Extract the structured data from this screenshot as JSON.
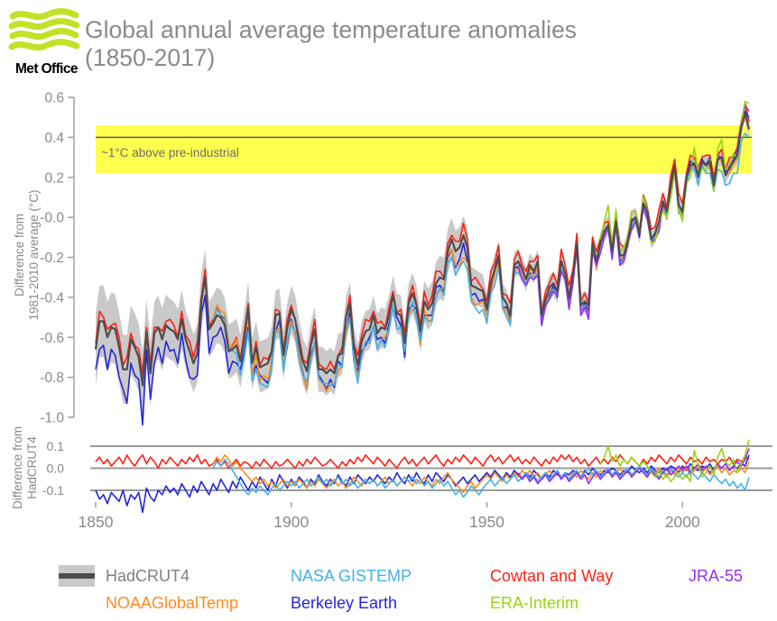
{
  "header": {
    "brand": "Met Office",
    "logo_icon": "met-office-waves-icon",
    "title_line1": "Global annual average temperature anomalies",
    "title_line2": "(1850-2017)"
  },
  "colors": {
    "background": "#ffffff",
    "title_text": "#8a8a8a",
    "axis_text": "#8a8a8a",
    "axis_line": "#9b9b9b",
    "grid_line": "#9b9b9b",
    "highlight_band": "#ffff4e",
    "highlight_line": "#5a5a5a",
    "uncertainty_band": "#c9c9c9",
    "logo_green": "#c3e126",
    "logo_text": "#000000"
  },
  "annotation": {
    "label": "~1°C above pre-industrial",
    "band_from_c": 0.22,
    "band_to_c": 0.46,
    "line_at_c": 0.4
  },
  "main_axis": {
    "ylabel_line1": "Difference from",
    "ylabel_line2": "1981-2010 average (°C)",
    "yticks": [
      0.6,
      0.4,
      0.2,
      0.0,
      -0.2,
      -0.4,
      -0.6,
      -0.8,
      -1.0
    ],
    "ytick_labels": [
      "0.6",
      "0.4",
      "0.2",
      "-0.0",
      "-0.2",
      "-0.4",
      "-0.6",
      "-0.8",
      "-1.0"
    ]
  },
  "diff_axis": {
    "ylabel_line1": "Difference from",
    "ylabel_line2": "HadCRUT4",
    "yticks": [
      0.1,
      0.0,
      -0.1
    ],
    "ytick_labels": [
      "0.1",
      "0.0",
      "-0.1"
    ]
  },
  "xaxis": {
    "ticks": [
      1850,
      1900,
      1950,
      2000
    ],
    "tick_labels": [
      "1850",
      "1900",
      "1950",
      "2000"
    ],
    "range": [
      1850,
      2017
    ]
  },
  "legend": {
    "rows": [
      [
        {
          "label": "HadCRUT4",
          "color": "#808080",
          "swatch": "band"
        },
        {
          "label": "NASA GISTEMP",
          "color": "#45b0e6"
        },
        {
          "label": "Cowtan and Way",
          "color": "#ff2014"
        },
        {
          "label": "JRA-55",
          "color": "#9430ef"
        }
      ],
      [
        {
          "label": "NOAAGlobalTemp",
          "color": "#ff8c1c"
        },
        {
          "label": "Berkeley Earth",
          "color": "#2525dc"
        },
        {
          "label": "ERA-Interim",
          "color": "#9bd313"
        }
      ]
    ]
  },
  "chart_data": {
    "type": "line",
    "title": "Global annual average temperature anomalies (1850-2017)",
    "xlabel": "",
    "ylabel": "Difference from 1981-2010 average (°C)",
    "diff_panel_ylabel": "Difference from HadCRUT4",
    "x_range": [
      1850,
      2017
    ],
    "main_ylim": [
      -1.05,
      0.65
    ],
    "diff_ylim": [
      -0.2,
      0.15
    ],
    "xticks": [
      1850,
      1900,
      1950,
      2000
    ],
    "main_yticks": [
      0.6,
      0.4,
      0.2,
      0.0,
      -0.2,
      -0.4,
      -0.6,
      -0.8,
      -1.0
    ],
    "diff_yticks": [
      0.1,
      0.0,
      -0.1
    ],
    "annotation_band": {
      "label": "~1°C above pre-industrial",
      "y_from": 0.22,
      "y_to": 0.46,
      "line_at": 0.4
    },
    "years_start": 1850,
    "hadcrut4": {
      "name": "HadCRUT4",
      "color": "#4d4d4d",
      "start_year": 1850,
      "values": [
        -0.66,
        -0.52,
        -0.52,
        -0.6,
        -0.55,
        -0.56,
        -0.65,
        -0.76,
        -0.76,
        -0.61,
        -0.65,
        -0.7,
        -0.84,
        -0.57,
        -0.78,
        -0.58,
        -0.55,
        -0.61,
        -0.54,
        -0.56,
        -0.57,
        -0.61,
        -0.51,
        -0.61,
        -0.67,
        -0.73,
        -0.68,
        -0.42,
        -0.3,
        -0.56,
        -0.53,
        -0.49,
        -0.5,
        -0.54,
        -0.67,
        -0.66,
        -0.64,
        -0.72,
        -0.6,
        -0.45,
        -0.73,
        -0.65,
        -0.75,
        -0.74,
        -0.73,
        -0.67,
        -0.49,
        -0.48,
        -0.69,
        -0.55,
        -0.46,
        -0.51,
        -0.63,
        -0.72,
        -0.77,
        -0.64,
        -0.56,
        -0.76,
        -0.76,
        -0.78,
        -0.76,
        -0.78,
        -0.69,
        -0.68,
        -0.5,
        -0.43,
        -0.65,
        -0.74,
        -0.62,
        -0.57,
        -0.56,
        -0.49,
        -0.58,
        -0.55,
        -0.56,
        -0.49,
        -0.39,
        -0.48,
        -0.49,
        -0.63,
        -0.43,
        -0.38,
        -0.44,
        -0.57,
        -0.42,
        -0.46,
        -0.43,
        -0.33,
        -0.3,
        -0.31,
        -0.17,
        -0.11,
        -0.17,
        -0.15,
        -0.09,
        -0.15,
        -0.34,
        -0.35,
        -0.36,
        -0.37,
        -0.46,
        -0.33,
        -0.26,
        -0.19,
        -0.4,
        -0.43,
        -0.49,
        -0.24,
        -0.22,
        -0.26,
        -0.31,
        -0.24,
        -0.27,
        -0.22,
        -0.49,
        -0.41,
        -0.35,
        -0.33,
        -0.37,
        -0.22,
        -0.28,
        -0.4,
        -0.29,
        -0.13,
        -0.44,
        -0.42,
        -0.44,
        -0.13,
        -0.22,
        -0.13,
        -0.07,
        -0.04,
        -0.17,
        -0.02,
        -0.19,
        -0.19,
        -0.12,
        -0.02,
        0.0,
        -0.08,
        0.07,
        0.03,
        -0.11,
        -0.08,
        -0.02,
        0.08,
        0.03,
        0.16,
        0.26,
        0.06,
        0.03,
        0.2,
        0.26,
        0.27,
        0.21,
        0.28,
        0.26,
        0.28,
        0.16,
        0.29,
        0.3,
        0.21,
        0.25,
        0.28,
        0.31,
        0.45,
        0.52,
        0.44
      ],
      "uncertainty_halfwidth_anchors": [
        [
          1850,
          0.18
        ],
        [
          1860,
          0.17
        ],
        [
          1870,
          0.15
        ],
        [
          1880,
          0.14
        ],
        [
          1890,
          0.13
        ],
        [
          1900,
          0.12
        ],
        [
          1910,
          0.11
        ],
        [
          1920,
          0.1
        ],
        [
          1930,
          0.1
        ],
        [
          1940,
          0.11
        ],
        [
          1950,
          0.08
        ],
        [
          1960,
          0.06
        ],
        [
          1970,
          0.06
        ],
        [
          1980,
          0.05
        ],
        [
          1990,
          0.05
        ],
        [
          2000,
          0.04
        ],
        [
          2010,
          0.04
        ],
        [
          2017,
          0.04
        ]
      ]
    },
    "series": [
      {
        "name": "Cowtan and Way",
        "color": "#ff2014",
        "start_year": 1850,
        "diff_from_hadcrut4": [
          0.03,
          0.05,
          0.02,
          0.04,
          0.01,
          0.03,
          0.05,
          0.02,
          0.06,
          0.03,
          0.01,
          0.04,
          0.06,
          0.02,
          0.05,
          0.03,
          0.0,
          0.04,
          0.02,
          0.05,
          0.03,
          0.01,
          0.04,
          0.02,
          0.05,
          0.03,
          0.06,
          0.02,
          0.04,
          0.01,
          0.02,
          0.04,
          0.01,
          0.03,
          0.0,
          0.02,
          0.04,
          0.01,
          0.03,
          0.02,
          0.0,
          0.03,
          0.01,
          0.04,
          0.02,
          0.0,
          0.03,
          0.01,
          0.02,
          0.04,
          0.02,
          0.0,
          0.03,
          0.01,
          0.04,
          0.02,
          0.05,
          0.03,
          0.01,
          0.02,
          0.04,
          0.02,
          0.0,
          0.03,
          0.01,
          0.04,
          0.02,
          0.05,
          0.03,
          0.06,
          0.04,
          0.02,
          0.05,
          0.03,
          0.01,
          0.04,
          0.02,
          0.0,
          0.03,
          0.05,
          0.02,
          0.04,
          0.01,
          0.03,
          0.05,
          0.02,
          0.04,
          0.06,
          0.03,
          0.01,
          0.04,
          0.02,
          0.05,
          0.03,
          0.06,
          0.04,
          0.02,
          0.05,
          0.03,
          0.01,
          0.04,
          0.06,
          0.03,
          0.05,
          0.02,
          0.04,
          0.06,
          0.03,
          0.05,
          0.02,
          0.04,
          0.02,
          0.05,
          0.03,
          0.01,
          0.04,
          0.02,
          0.05,
          0.03,
          0.06,
          0.04,
          0.06,
          0.03,
          0.05,
          0.02,
          0.04,
          0.01,
          0.03,
          0.05,
          0.02,
          0.04,
          0.02,
          0.05,
          0.03,
          0.06,
          0.04,
          0.02,
          0.05,
          0.03,
          0.01,
          0.04,
          0.02,
          0.05,
          0.03,
          0.06,
          0.04,
          0.02,
          0.05,
          0.03,
          0.06,
          0.04,
          0.02,
          0.05,
          0.03,
          0.04,
          0.02,
          0.05,
          0.03,
          0.04,
          0.02,
          0.04,
          0.03,
          0.05,
          0.02,
          0.04,
          0.03,
          0.05,
          0.04
        ]
      },
      {
        "name": "Berkeley Earth",
        "color": "#2525dc",
        "start_year": 1850,
        "diff_from_hadcrut4": [
          -0.1,
          -0.14,
          -0.12,
          -0.16,
          -0.11,
          -0.13,
          -0.15,
          -0.1,
          -0.17,
          -0.12,
          -0.14,
          -0.11,
          -0.2,
          -0.09,
          -0.13,
          -0.15,
          -0.1,
          -0.12,
          -0.08,
          -0.11,
          -0.09,
          -0.12,
          -0.07,
          -0.1,
          -0.13,
          -0.08,
          -0.11,
          -0.06,
          -0.09,
          -0.12,
          -0.07,
          -0.1,
          -0.05,
          -0.08,
          -0.11,
          -0.06,
          -0.09,
          -0.04,
          -0.07,
          -0.1,
          -0.06,
          -0.09,
          -0.04,
          -0.07,
          -0.1,
          -0.05,
          -0.08,
          -0.03,
          -0.06,
          -0.09,
          -0.05,
          -0.08,
          -0.04,
          -0.06,
          -0.09,
          -0.05,
          -0.07,
          -0.03,
          -0.06,
          -0.08,
          -0.05,
          -0.07,
          -0.03,
          -0.06,
          -0.08,
          -0.04,
          -0.07,
          -0.03,
          -0.05,
          -0.07,
          -0.04,
          -0.06,
          -0.03,
          -0.05,
          -0.07,
          -0.04,
          -0.06,
          -0.02,
          -0.05,
          -0.07,
          -0.03,
          -0.06,
          -0.02,
          -0.05,
          -0.07,
          -0.03,
          -0.06,
          -0.02,
          -0.04,
          -0.06,
          -0.03,
          -0.05,
          -0.08,
          -0.06,
          -0.04,
          -0.07,
          -0.05,
          -0.03,
          -0.06,
          -0.04,
          -0.02,
          -0.04,
          -0.01,
          -0.03,
          -0.05,
          -0.02,
          -0.04,
          -0.01,
          -0.03,
          -0.05,
          -0.02,
          -0.04,
          -0.01,
          -0.03,
          -0.05,
          -0.02,
          -0.04,
          -0.01,
          -0.03,
          -0.04,
          -0.02,
          -0.03,
          -0.01,
          -0.02,
          -0.04,
          -0.01,
          -0.03,
          0.0,
          -0.02,
          -0.03,
          -0.01,
          -0.02,
          0.0,
          -0.01,
          -0.03,
          -0.01,
          -0.02,
          0.01,
          -0.01,
          -0.02,
          0.0,
          -0.02,
          0.01,
          -0.01,
          -0.02,
          0.0,
          -0.01,
          0.01,
          0.0,
          -0.02,
          0.01,
          -0.01,
          0.02,
          0.0,
          -0.01,
          0.01,
          0.0,
          0.02,
          -0.01,
          0.01,
          0.0,
          0.02,
          -0.01,
          0.01,
          0.0,
          0.02,
          0.01,
          0.06
        ]
      },
      {
        "name": "NOAAGlobalTemp",
        "color": "#ff8c1c",
        "start_year": 1880,
        "diff_from_hadcrut4": [
          0.02,
          0.05,
          0.03,
          0.06,
          0.04,
          0.01,
          0.03,
          0.0,
          -0.02,
          -0.04,
          -0.06,
          -0.04,
          -0.07,
          -0.05,
          -0.08,
          -0.06,
          -0.09,
          -0.07,
          -0.05,
          -0.08,
          -0.06,
          -0.08,
          -0.05,
          -0.07,
          -0.09,
          -0.06,
          -0.08,
          -0.05,
          -0.07,
          -0.09,
          -0.07,
          -0.05,
          -0.08,
          -0.06,
          -0.09,
          -0.07,
          -0.04,
          -0.06,
          -0.08,
          -0.05,
          -0.07,
          -0.05,
          -0.08,
          -0.06,
          -0.04,
          -0.07,
          -0.05,
          -0.08,
          -0.06,
          -0.04,
          -0.06,
          -0.08,
          -0.05,
          -0.07,
          -0.04,
          -0.06,
          -0.08,
          -0.05,
          -0.07,
          -0.04,
          -0.02,
          -0.05,
          -0.07,
          -0.09,
          -0.11,
          -0.08,
          -0.06,
          -0.09,
          -0.07,
          -0.05,
          -0.03,
          -0.05,
          -0.02,
          -0.04,
          -0.06,
          -0.03,
          -0.05,
          -0.02,
          -0.04,
          -0.01,
          -0.03,
          -0.01,
          -0.04,
          -0.02,
          -0.05,
          -0.03,
          -0.01,
          -0.04,
          -0.02,
          -0.05,
          -0.03,
          -0.05,
          -0.02,
          -0.04,
          -0.01,
          -0.03,
          -0.05,
          -0.02,
          -0.04,
          -0.01,
          -0.03,
          -0.01,
          -0.04,
          -0.02,
          0.0,
          -0.03,
          -0.01,
          -0.04,
          -0.02,
          0.0,
          -0.02,
          -0.04,
          -0.01,
          -0.03,
          0.0,
          -0.02,
          -0.04,
          -0.01,
          -0.03,
          0.0,
          -0.02,
          0.0,
          -0.03,
          -0.01,
          0.01,
          -0.02,
          0.0,
          -0.03,
          -0.01,
          0.01,
          -0.02,
          0.0,
          -0.03,
          -0.01,
          -0.02,
          0.0,
          -0.02,
          0.03
        ]
      },
      {
        "name": "NASA GISTEMP",
        "color": "#45b0e6",
        "start_year": 1880,
        "diff_from_hadcrut4": [
          0.0,
          0.03,
          0.01,
          0.04,
          0.02,
          -0.01,
          -0.04,
          -0.07,
          -0.1,
          -0.12,
          -0.09,
          -0.11,
          -0.08,
          -0.1,
          -0.12,
          -0.09,
          -0.07,
          -0.1,
          -0.08,
          -0.06,
          -0.08,
          -0.06,
          -0.09,
          -0.07,
          -0.05,
          -0.08,
          -0.06,
          -0.04,
          -0.07,
          -0.05,
          -0.08,
          -0.06,
          -0.04,
          -0.07,
          -0.05,
          -0.08,
          -0.06,
          -0.09,
          -0.07,
          -0.05,
          -0.07,
          -0.05,
          -0.08,
          -0.06,
          -0.09,
          -0.07,
          -0.05,
          -0.08,
          -0.06,
          -0.04,
          -0.06,
          -0.04,
          -0.07,
          -0.05,
          -0.08,
          -0.06,
          -0.09,
          -0.07,
          -0.05,
          -0.08,
          -0.06,
          -0.09,
          -0.12,
          -0.1,
          -0.13,
          -0.11,
          -0.08,
          -0.1,
          -0.12,
          -0.09,
          -0.07,
          -0.05,
          -0.08,
          -0.06,
          -0.04,
          -0.07,
          -0.05,
          -0.03,
          -0.06,
          -0.04,
          -0.02,
          -0.05,
          -0.03,
          -0.06,
          -0.04,
          -0.02,
          -0.05,
          -0.03,
          -0.01,
          -0.04,
          -0.02,
          -0.05,
          -0.03,
          -0.01,
          -0.04,
          -0.02,
          0.0,
          -0.03,
          -0.01,
          -0.04,
          -0.02,
          0.0,
          -0.03,
          -0.01,
          -0.04,
          -0.02,
          0.0,
          -0.03,
          -0.01,
          0.01,
          -0.01,
          -0.03,
          0.0,
          -0.02,
          -0.04,
          -0.01,
          -0.03,
          0.0,
          -0.02,
          -0.04,
          -0.02,
          -0.04,
          -0.01,
          -0.03,
          -0.05,
          -0.02,
          -0.04,
          -0.06,
          -0.03,
          -0.05,
          -0.07,
          -0.05,
          -0.08,
          -0.06,
          -0.09,
          -0.07,
          -0.1,
          -0.04
        ]
      },
      {
        "name": "JRA-55",
        "color": "#9430ef",
        "start_year": 1958,
        "diff_from_hadcrut4": [
          -0.02,
          -0.05,
          -0.03,
          -0.06,
          -0.04,
          -0.07,
          -0.05,
          -0.03,
          -0.06,
          -0.04,
          -0.02,
          -0.05,
          -0.03,
          -0.06,
          -0.04,
          -0.02,
          -0.05,
          -0.03,
          -0.07,
          -0.04,
          -0.02,
          -0.05,
          -0.03,
          -0.01,
          -0.04,
          -0.02,
          -0.05,
          -0.03,
          -0.01,
          -0.04,
          -0.02,
          0.0,
          -0.02,
          -0.04,
          -0.01,
          -0.03,
          -0.05,
          -0.02,
          0.0,
          -0.03,
          -0.01,
          0.01,
          -0.01,
          0.01,
          -0.02,
          0.0,
          0.02,
          -0.01,
          0.01,
          -0.02,
          0.0,
          0.02,
          0.0,
          0.02,
          -0.01,
          0.01,
          0.03,
          0.01,
          0.04,
          0.09
        ]
      },
      {
        "name": "ERA-Interim",
        "color": "#9bd313",
        "start_year": 1979,
        "diff_from_hadcrut4": [
          0.02,
          0.05,
          0.1,
          0.03,
          0.06,
          0.01,
          0.04,
          0.02,
          0.05,
          0.03,
          0.01,
          0.03,
          0.01,
          -0.02,
          -0.04,
          -0.01,
          -0.05,
          -0.03,
          -0.06,
          -0.04,
          -0.02,
          -0.05,
          -0.03,
          -0.06,
          0.08,
          0.02,
          -0.04,
          -0.02,
          0.01,
          -0.03,
          0.05,
          0.09,
          0.03,
          0.01,
          0.04,
          -0.02,
          0.02,
          0.06,
          0.13
        ]
      }
    ]
  }
}
